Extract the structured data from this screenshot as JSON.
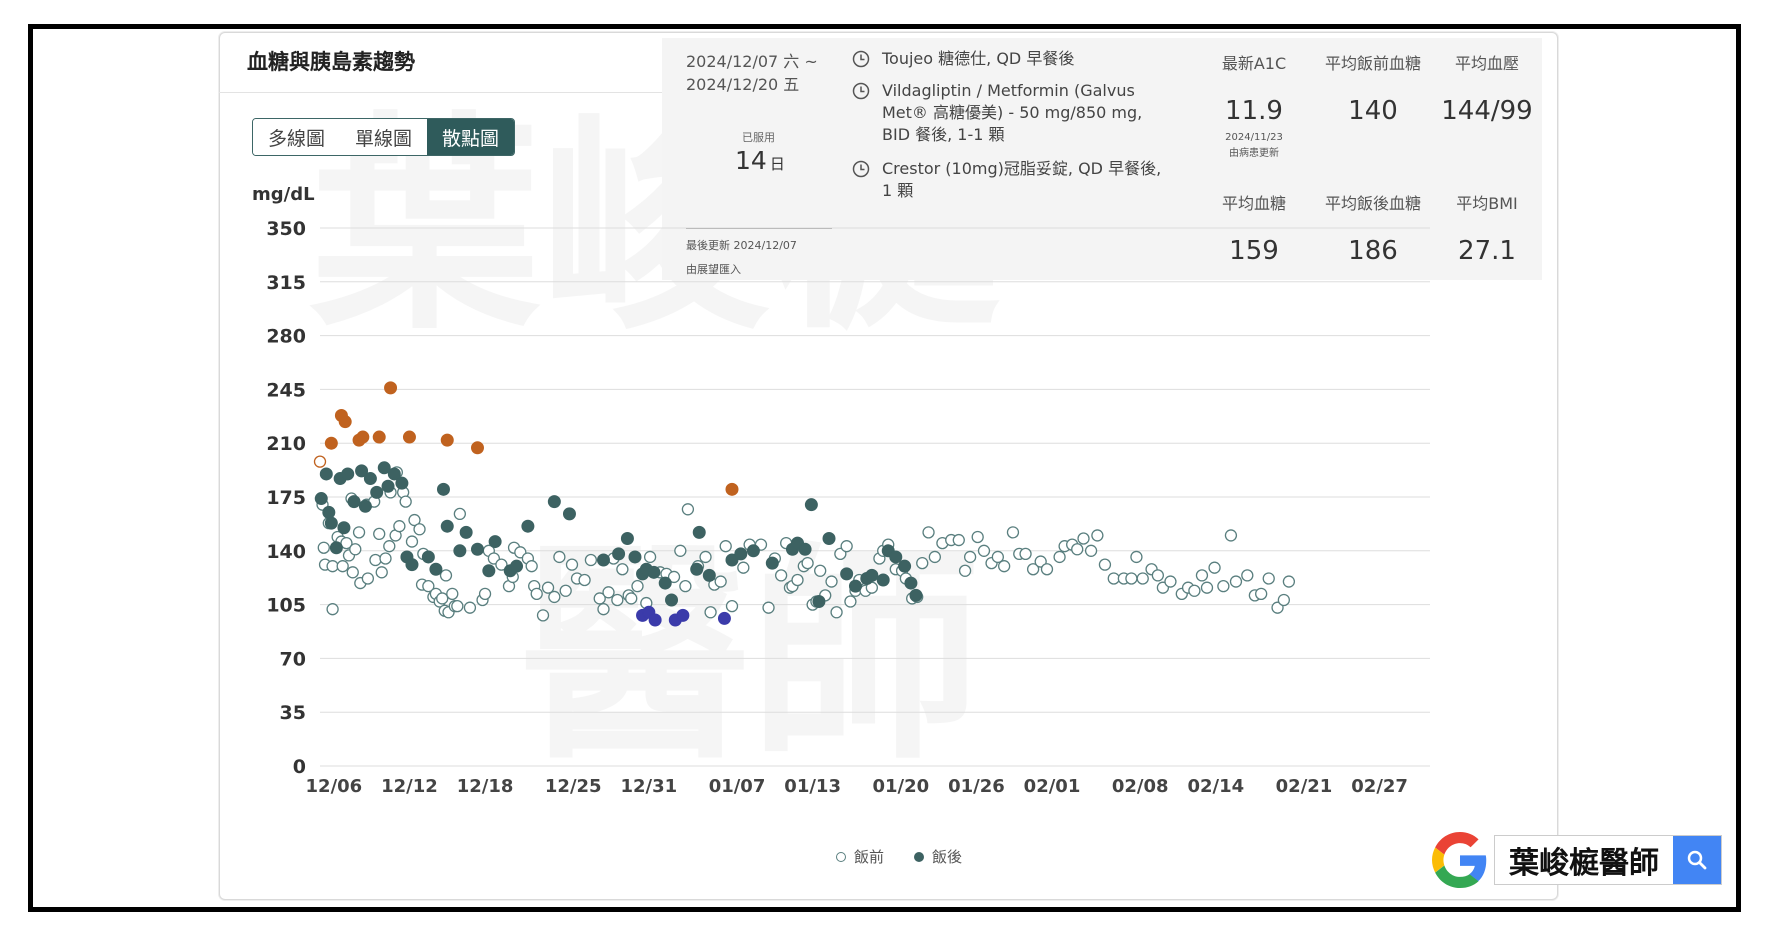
{
  "card": {
    "title": "血糖與胰島素趨勢",
    "view_tabs": [
      "多線圖",
      "單線圖",
      "散點圖"
    ],
    "active_tab_index": 2
  },
  "medication_period": {
    "date_line_1": "2024/12/07 六 ~",
    "date_line_2": "2024/12/20 五",
    "taken_label": "已服用",
    "taken_days": "14",
    "taken_unit": "日",
    "updated": "最後更新 2024/12/07",
    "source": "由展望匯入"
  },
  "medications": [
    "Toujeo 糖德仕, QD 早餐後",
    "Vildagliptin / Metformin (Galvus Met® 高糖優美) - 50 mg/850 mg, BID 餐後, 1-1 顆",
    "Crestor (10mg)冠脂妥錠, QD 早餐後, 1 顆"
  ],
  "stats": {
    "a1c": {
      "label": "最新A1C",
      "value": "11.9",
      "date": "2024/11/23",
      "note": "由病患更新"
    },
    "avg_pre": {
      "label": "平均飯前血糖",
      "value": "140"
    },
    "avg_bp": {
      "label": "平均血壓",
      "value": "144/99"
    },
    "avg_glucose": {
      "label": "平均血糖",
      "value": "159"
    },
    "avg_post": {
      "label": "平均飯後血糖",
      "value": "186"
    },
    "avg_bmi": {
      "label": "平均BMI",
      "value": "27.1"
    }
  },
  "colors": {
    "pre": "#5a7f7f",
    "post": "#3d6262",
    "high": "#c0621f",
    "low": "#3b3baa",
    "grid": "#dddddd",
    "accent": "#2f5b5b"
  },
  "chart_data": {
    "type": "scatter",
    "ylabel": "mg/dL",
    "ylim": [
      0,
      350
    ],
    "y_ticks": [
      0,
      35,
      70,
      105,
      140,
      175,
      210,
      245,
      280,
      315,
      350
    ],
    "x_ticks": [
      "12/06",
      "12/12",
      "12/18",
      "12/25",
      "12/31",
      "01/07",
      "01/13",
      "01/20",
      "01/26",
      "02/01",
      "02/08",
      "02/14",
      "02/21",
      "02/27"
    ],
    "x_tick_days": [
      5,
      11,
      17,
      24,
      30,
      37,
      43,
      50,
      56,
      62,
      69,
      75,
      82,
      88
    ],
    "x_origin": "2024-12-01",
    "xlim": [
      3.9,
      92
    ],
    "legend": [
      "飯前",
      "飯後"
    ],
    "legend_placement": "bottom-center",
    "series": [
      {
        "name": "飯前",
        "points": [
          [
            3.9,
            198
          ],
          [
            4.1,
            170
          ],
          [
            4.2,
            142
          ],
          [
            4.3,
            131
          ],
          [
            4.6,
            158
          ],
          [
            4.9,
            102
          ],
          [
            4.9,
            130
          ],
          [
            5.3,
            149
          ],
          [
            5.6,
            146
          ],
          [
            5.7,
            130
          ],
          [
            6.0,
            145
          ],
          [
            6.2,
            137
          ],
          [
            6.4,
            174
          ],
          [
            6.5,
            126
          ],
          [
            6.7,
            141
          ],
          [
            7.0,
            152
          ],
          [
            7.1,
            119
          ],
          [
            7.6,
            170
          ],
          [
            7.7,
            122
          ],
          [
            8.2,
            172
          ],
          [
            8.3,
            134
          ],
          [
            8.6,
            151
          ],
          [
            8.8,
            126
          ],
          [
            9.1,
            135
          ],
          [
            9.4,
            143
          ],
          [
            9.5,
            178
          ],
          [
            9.9,
            150
          ],
          [
            10.0,
            191
          ],
          [
            10.2,
            156
          ],
          [
            10.5,
            178
          ],
          [
            10.7,
            172
          ],
          [
            11.2,
            146
          ],
          [
            11.4,
            160
          ],
          [
            11.8,
            154
          ],
          [
            12.0,
            118
          ],
          [
            12.1,
            138
          ],
          [
            12.5,
            117
          ],
          [
            12.9,
            110
          ],
          [
            13.1,
            112
          ],
          [
            13.4,
            107
          ],
          [
            13.6,
            109
          ],
          [
            13.8,
            101
          ],
          [
            13.9,
            124
          ],
          [
            14.1,
            100
          ],
          [
            14.4,
            112
          ],
          [
            14.6,
            104
          ],
          [
            14.8,
            104
          ],
          [
            15.0,
            164
          ],
          [
            15.8,
            103
          ],
          [
            16.8,
            108
          ],
          [
            17.0,
            112
          ],
          [
            17.3,
            140
          ],
          [
            17.7,
            135
          ],
          [
            18.3,
            131
          ],
          [
            18.9,
            117
          ],
          [
            19.2,
            123
          ],
          [
            19.3,
            142
          ],
          [
            19.8,
            139
          ],
          [
            20.4,
            135
          ],
          [
            20.7,
            130
          ],
          [
            20.9,
            117
          ],
          [
            21.1,
            112
          ],
          [
            21.6,
            98
          ],
          [
            22.0,
            116
          ],
          [
            22.5,
            110
          ],
          [
            22.9,
            136
          ],
          [
            23.4,
            114
          ],
          [
            23.9,
            131
          ],
          [
            24.3,
            122
          ],
          [
            24.9,
            121
          ],
          [
            25.4,
            134
          ],
          [
            26.1,
            109
          ],
          [
            26.4,
            102
          ],
          [
            26.8,
            113
          ],
          [
            27.2,
            135
          ],
          [
            27.5,
            108
          ],
          [
            27.9,
            128
          ],
          [
            28.4,
            111
          ],
          [
            28.6,
            109
          ],
          [
            29.1,
            117
          ],
          [
            29.8,
            106
          ],
          [
            30.1,
            136
          ],
          [
            30.9,
            126
          ],
          [
            31.4,
            125
          ],
          [
            32.0,
            123
          ],
          [
            32.5,
            140
          ],
          [
            32.9,
            117
          ],
          [
            33.1,
            167
          ],
          [
            33.9,
            130
          ],
          [
            34.5,
            136
          ],
          [
            34.9,
            100
          ],
          [
            35.2,
            118
          ],
          [
            35.7,
            120
          ],
          [
            36.1,
            143
          ],
          [
            36.6,
            104
          ],
          [
            37.5,
            129
          ],
          [
            38.0,
            144
          ],
          [
            38.9,
            144
          ],
          [
            39.5,
            103
          ],
          [
            40.0,
            135
          ],
          [
            40.5,
            124
          ],
          [
            40.9,
            145
          ],
          [
            41.2,
            116
          ],
          [
            41.4,
            117
          ],
          [
            41.8,
            121
          ],
          [
            42.3,
            130
          ],
          [
            42.6,
            132
          ],
          [
            43.0,
            105
          ],
          [
            43.3,
            107
          ],
          [
            43.6,
            127
          ],
          [
            44.0,
            111
          ],
          [
            44.5,
            120
          ],
          [
            44.9,
            100
          ],
          [
            45.2,
            138
          ],
          [
            45.7,
            143
          ],
          [
            46.0,
            107
          ],
          [
            46.4,
            114
          ],
          [
            46.7,
            121
          ],
          [
            47.2,
            114
          ],
          [
            47.7,
            116
          ],
          [
            48.3,
            135
          ],
          [
            48.6,
            140
          ],
          [
            49.0,
            144
          ],
          [
            49.6,
            128
          ],
          [
            50.1,
            127
          ],
          [
            50.4,
            122
          ],
          [
            50.9,
            109
          ],
          [
            51.3,
            110
          ],
          [
            51.7,
            132
          ],
          [
            52.2,
            152
          ],
          [
            52.7,
            136
          ],
          [
            53.3,
            145
          ],
          [
            54.0,
            147
          ],
          [
            54.6,
            147
          ],
          [
            55.1,
            127
          ],
          [
            55.5,
            136
          ],
          [
            56.1,
            149
          ],
          [
            56.6,
            140
          ],
          [
            57.2,
            132
          ],
          [
            57.7,
            136
          ],
          [
            58.2,
            130
          ],
          [
            58.9,
            152
          ],
          [
            59.4,
            138
          ],
          [
            59.9,
            138
          ],
          [
            60.5,
            128
          ],
          [
            61.1,
            133
          ],
          [
            61.6,
            128
          ],
          [
            62.6,
            136
          ],
          [
            63.0,
            143
          ],
          [
            63.6,
            144
          ],
          [
            64.0,
            141
          ],
          [
            64.5,
            148
          ],
          [
            65.1,
            140
          ],
          [
            65.6,
            150
          ],
          [
            66.2,
            131
          ],
          [
            66.9,
            122
          ],
          [
            67.7,
            122
          ],
          [
            68.3,
            122
          ],
          [
            68.7,
            136
          ],
          [
            69.2,
            122
          ],
          [
            69.9,
            128
          ],
          [
            70.4,
            124
          ],
          [
            70.8,
            116
          ],
          [
            71.4,
            120
          ],
          [
            72.3,
            112
          ],
          [
            72.8,
            116
          ],
          [
            73.3,
            114
          ],
          [
            73.9,
            124
          ],
          [
            74.3,
            116
          ],
          [
            74.9,
            129
          ],
          [
            75.6,
            117
          ],
          [
            76.2,
            150
          ],
          [
            76.6,
            120
          ],
          [
            77.5,
            124
          ],
          [
            78.1,
            111
          ],
          [
            78.6,
            112
          ],
          [
            79.2,
            122
          ],
          [
            79.9,
            103
          ],
          [
            80.4,
            108
          ],
          [
            80.8,
            120
          ]
        ]
      },
      {
        "name": "飯後",
        "points": [
          [
            4.0,
            174
          ],
          [
            4.4,
            190
          ],
          [
            4.6,
            165
          ],
          [
            4.8,
            158
          ],
          [
            5.2,
            142
          ],
          [
            5.5,
            187
          ],
          [
            5.8,
            155
          ],
          [
            6.1,
            190
          ],
          [
            6.6,
            172
          ],
          [
            7.2,
            192
          ],
          [
            7.5,
            169
          ],
          [
            7.9,
            187
          ],
          [
            8.4,
            178
          ],
          [
            9.0,
            194
          ],
          [
            9.3,
            182
          ],
          [
            9.8,
            190
          ],
          [
            10.4,
            184
          ],
          [
            10.8,
            136
          ],
          [
            11.2,
            131
          ],
          [
            12.5,
            136
          ],
          [
            13.1,
            128
          ],
          [
            13.7,
            180
          ],
          [
            14.0,
            156
          ],
          [
            15.0,
            140
          ],
          [
            15.5,
            152
          ],
          [
            16.4,
            141
          ],
          [
            17.3,
            127
          ],
          [
            17.8,
            146
          ],
          [
            19.0,
            127
          ],
          [
            19.5,
            130
          ],
          [
            20.4,
            156
          ],
          [
            22.5,
            172
          ],
          [
            23.7,
            164
          ],
          [
            26.4,
            134
          ],
          [
            27.6,
            138
          ],
          [
            28.3,
            148
          ],
          [
            28.9,
            136
          ],
          [
            29.5,
            125
          ],
          [
            29.8,
            128
          ],
          [
            30.4,
            126
          ],
          [
            31.3,
            119
          ],
          [
            31.8,
            108
          ],
          [
            33.8,
            128
          ],
          [
            34.0,
            152
          ],
          [
            34.8,
            124
          ],
          [
            36.6,
            134
          ],
          [
            37.3,
            138
          ],
          [
            38.3,
            140
          ],
          [
            39.8,
            132
          ],
          [
            41.4,
            141
          ],
          [
            41.8,
            145
          ],
          [
            42.4,
            141
          ],
          [
            42.9,
            170
          ],
          [
            43.5,
            107
          ],
          [
            44.3,
            148
          ],
          [
            45.7,
            125
          ],
          [
            46.4,
            117
          ],
          [
            47.3,
            122
          ],
          [
            47.7,
            124
          ],
          [
            48.6,
            121
          ],
          [
            49.0,
            140
          ],
          [
            49.6,
            136
          ],
          [
            50.3,
            130
          ],
          [
            50.8,
            119
          ],
          [
            51.2,
            111
          ]
        ]
      }
    ],
    "high_points": [
      [
        3.9,
        198
      ],
      [
        4.8,
        210
      ],
      [
        5.6,
        228
      ],
      [
        5.9,
        224
      ],
      [
        7.0,
        212
      ],
      [
        7.3,
        214
      ],
      [
        8.6,
        214
      ],
      [
        9.5,
        246
      ],
      [
        11.0,
        214
      ],
      [
        14.0,
        212
      ],
      [
        16.4,
        207
      ],
      [
        36.6,
        180
      ]
    ],
    "low_points": [
      [
        29.5,
        98
      ],
      [
        30.0,
        100
      ],
      [
        30.5,
        95
      ],
      [
        32.1,
        95
      ],
      [
        32.7,
        98
      ],
      [
        36.0,
        96
      ]
    ]
  },
  "google_search": {
    "query": "葉峻榳醫師"
  },
  "watermark": [
    "葉峻榳",
    "醫師"
  ]
}
